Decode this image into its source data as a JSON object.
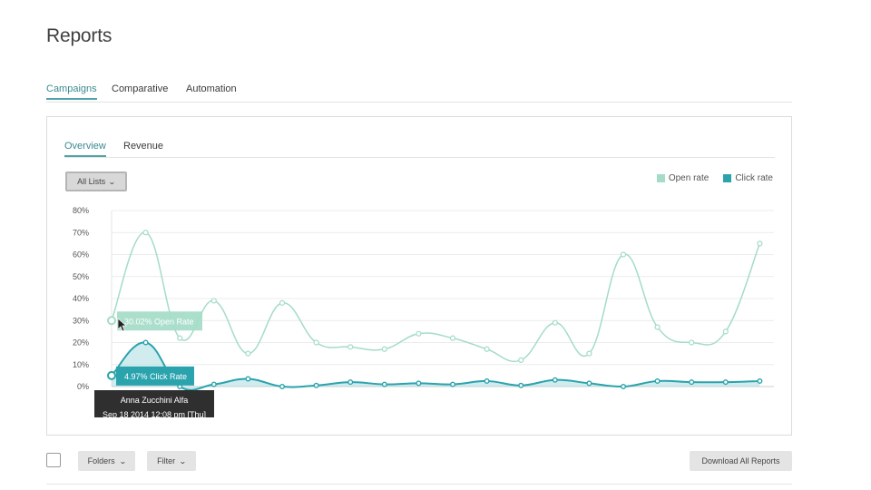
{
  "page": {
    "title": "Reports"
  },
  "main_tabs": [
    {
      "label": "Campaigns",
      "active": true
    },
    {
      "label": "Comparative",
      "active": false
    },
    {
      "label": "Automation",
      "active": false
    }
  ],
  "sub_tabs": [
    {
      "label": "Overview",
      "active": true
    },
    {
      "label": "Revenue",
      "active": false
    }
  ],
  "filter_dropdown": {
    "label": "All Lists",
    "icon": "chevron-down-icon"
  },
  "legend": [
    {
      "label": "Open rate",
      "color": "#a4dcc8"
    },
    {
      "label": "Click rate",
      "color": "#2aa3ad"
    }
  ],
  "tooltips": {
    "open_rate": "30.02% Open Rate",
    "click_rate": "4.97% Click Rate",
    "campaign_name": "Anna Zucchini Alfa",
    "campaign_date": "Sep 18 2014 12:08 pm [Thu]"
  },
  "chart_data": {
    "type": "line",
    "y_ticks": [
      "0%",
      "10%",
      "20%",
      "30%",
      "40%",
      "50%",
      "60%",
      "70%",
      "80%"
    ],
    "ylim": [
      0,
      80
    ],
    "x": [
      0,
      1,
      2,
      3,
      4,
      5,
      6,
      7,
      8,
      9,
      10,
      11,
      12,
      13,
      14,
      15,
      16,
      17,
      18,
      19
    ],
    "series": [
      {
        "name": "Open rate",
        "color": "#a4dcc8",
        "values": [
          30,
          70,
          22,
          39,
          15,
          38,
          20,
          18,
          17,
          24,
          22,
          17,
          12,
          29,
          15,
          60,
          27,
          20,
          25,
          65
        ]
      },
      {
        "name": "Click rate",
        "color": "#2aa3ad",
        "values": [
          5,
          20,
          0,
          1,
          3.5,
          0,
          0.5,
          2,
          1,
          1.5,
          1,
          2.5,
          0.5,
          3,
          1.5,
          0,
          2.5,
          2,
          2,
          2.5
        ]
      }
    ],
    "grid": true,
    "legend_position": "top-right"
  },
  "bottom_bar": {
    "folders_label": "Folders",
    "filter_label": "Filter",
    "download_label": "Download All Reports"
  }
}
